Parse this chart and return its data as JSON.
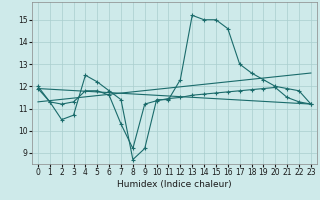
{
  "xlabel": "Humidex (Indice chaleur)",
  "background_color": "#ceeaea",
  "grid_color": "#aacece",
  "line_color": "#1a6b6b",
  "xlim": [
    -0.5,
    23.5
  ],
  "ylim": [
    8.5,
    15.8
  ],
  "yticks": [
    9,
    10,
    11,
    12,
    13,
    14,
    15
  ],
  "xticks": [
    0,
    1,
    2,
    3,
    4,
    5,
    6,
    7,
    8,
    9,
    10,
    11,
    12,
    13,
    14,
    15,
    16,
    17,
    18,
    19,
    20,
    21,
    22,
    23
  ],
  "series": [
    {
      "x": [
        0,
        1,
        2,
        3,
        4,
        5,
        6,
        7,
        8,
        9,
        10,
        11,
        12,
        13,
        14,
        15,
        16,
        17,
        18,
        19,
        20,
        21,
        22,
        23
      ],
      "y": [
        12.0,
        11.3,
        10.5,
        10.7,
        12.5,
        12.2,
        11.8,
        11.4,
        8.7,
        9.2,
        11.4,
        11.4,
        12.3,
        15.2,
        15.0,
        15.0,
        14.6,
        13.0,
        12.6,
        12.3,
        12.0,
        11.9,
        11.8,
        11.2
      ],
      "marker": true
    },
    {
      "x": [
        0,
        23
      ],
      "y": [
        11.9,
        11.2
      ],
      "marker": false
    },
    {
      "x": [
        0,
        23
      ],
      "y": [
        11.3,
        12.6
      ],
      "marker": false
    },
    {
      "x": [
        0,
        1,
        2,
        3,
        4,
        5,
        6,
        7,
        8,
        9,
        10,
        11,
        12,
        13,
        14,
        15,
        16,
        17,
        18,
        19,
        20,
        21,
        22,
        23
      ],
      "y": [
        11.9,
        11.3,
        11.2,
        11.3,
        11.8,
        11.8,
        11.6,
        10.3,
        9.2,
        11.2,
        11.35,
        11.45,
        11.5,
        11.6,
        11.65,
        11.7,
        11.75,
        11.8,
        11.85,
        11.9,
        11.95,
        11.5,
        11.3,
        11.2
      ],
      "marker": true
    }
  ]
}
